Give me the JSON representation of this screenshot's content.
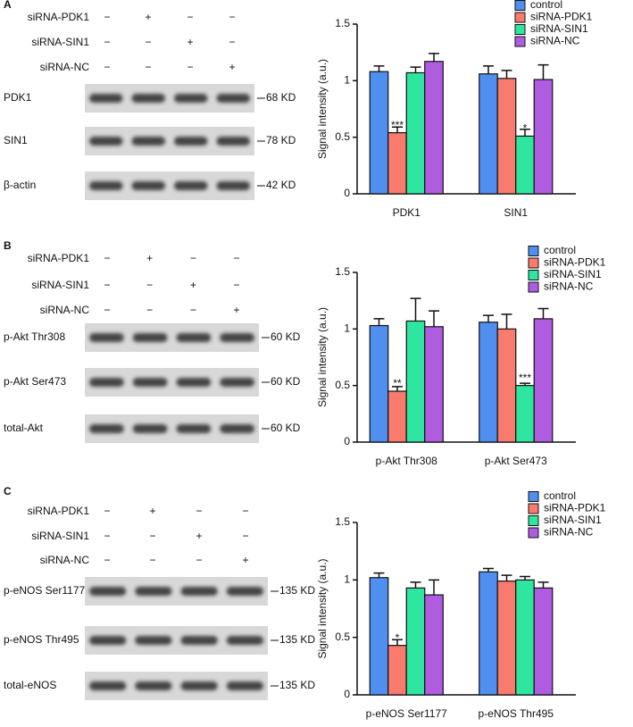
{
  "blots": [
    {
      "panel": "A",
      "treatments": [
        {
          "name": "siRNA-PDK1",
          "signs": [
            "−",
            "+",
            "−",
            "−"
          ]
        },
        {
          "name": "siRNA-SIN1",
          "signs": [
            "−",
            "−",
            "+",
            "−"
          ]
        },
        {
          "name": "siRNA-NC",
          "signs": [
            "−",
            "−",
            "−",
            "+"
          ]
        }
      ],
      "bands": [
        {
          "name": "PDK1",
          "size": "68 KD"
        },
        {
          "name": "SIN1",
          "size": "78 KD"
        },
        {
          "name": "β-actin",
          "size": "42 KD"
        }
      ]
    },
    {
      "panel": "B",
      "treatments": [
        {
          "name": "siRNA-PDK1",
          "signs": [
            "−",
            "+",
            "−",
            "−"
          ]
        },
        {
          "name": "siRNA-SIN1",
          "signs": [
            "−",
            "−",
            "+",
            "−"
          ]
        },
        {
          "name": "siRNA-NC",
          "signs": [
            "−",
            "−",
            "−",
            "+"
          ]
        }
      ],
      "bands": [
        {
          "name": "p-Akt Thr308",
          "size": "60 KD"
        },
        {
          "name": "p-Akt Ser473",
          "size": "60 KD"
        },
        {
          "name": "total-Akt",
          "size": "60 KD"
        }
      ]
    },
    {
      "panel": "C",
      "treatments": [
        {
          "name": "siRNA-PDK1",
          "signs": [
            "−",
            "+",
            "−",
            "−"
          ]
        },
        {
          "name": "siRNA-SIN1",
          "signs": [
            "−",
            "−",
            "+",
            "−"
          ]
        },
        {
          "name": "siRNA-NC",
          "signs": [
            "−",
            "−",
            "−",
            "+"
          ]
        }
      ],
      "bands": [
        {
          "name": "p-eNOS Ser1177",
          "size": "135 KD"
        },
        {
          "name": "p-eNOS Thr495",
          "size": "135 KD"
        },
        {
          "name": "total-eNOS",
          "size": "135 KD"
        }
      ]
    }
  ],
  "chart_data": [
    {
      "type": "bar",
      "y_label": "Signal intensity (a.u.)",
      "categories": [
        "PDK1",
        "SIN1"
      ],
      "ylim": [
        0,
        1.5
      ],
      "yticks": [
        0,
        0.5,
        1,
        1.5
      ],
      "legend": "upper right",
      "series": [
        {
          "name": "control",
          "color": "#4f8ff0",
          "values": [
            1.08,
            1.06
          ],
          "errors": [
            0.05,
            0.07
          ],
          "significance": [
            null,
            null
          ]
        },
        {
          "name": "siRNA-PDK1",
          "color": "#f87b6e",
          "values": [
            0.54,
            1.02
          ],
          "errors": [
            0.05,
            0.07
          ],
          "significance": [
            "***",
            null
          ]
        },
        {
          "name": "siRNA-SIN1",
          "color": "#2ee6a0",
          "values": [
            1.07,
            0.51
          ],
          "errors": [
            0.05,
            0.06
          ],
          "significance": [
            null,
            "*"
          ]
        },
        {
          "name": "siRNA-NC",
          "color": "#b05ce0",
          "values": [
            1.17,
            1.01
          ],
          "errors": [
            0.07,
            0.13
          ],
          "significance": [
            null,
            null
          ]
        }
      ]
    },
    {
      "type": "bar",
      "y_label": "Signal intensity (a.u.)",
      "categories": [
        "p-Akt Thr308",
        "p-Akt Ser473"
      ],
      "ylim": [
        0,
        1.5
      ],
      "yticks": [
        0,
        0.5,
        1,
        1.5
      ],
      "legend": "upper right",
      "series": [
        {
          "name": "control",
          "color": "#4f8ff0",
          "values": [
            1.03,
            1.06
          ],
          "errors": [
            0.06,
            0.06
          ],
          "significance": [
            null,
            null
          ]
        },
        {
          "name": "siRNA-PDK1",
          "color": "#f87b6e",
          "values": [
            0.45,
            1.0
          ],
          "errors": [
            0.04,
            0.13
          ],
          "significance": [
            "**",
            null
          ]
        },
        {
          "name": "siRNA-SIN1",
          "color": "#2ee6a0",
          "values": [
            1.07,
            0.5
          ],
          "errors": [
            0.2,
            0.02
          ],
          "significance": [
            null,
            "***"
          ]
        },
        {
          "name": "siRNA-NC",
          "color": "#b05ce0",
          "values": [
            1.02,
            1.09
          ],
          "errors": [
            0.14,
            0.09
          ],
          "significance": [
            null,
            null
          ]
        }
      ]
    },
    {
      "type": "bar",
      "y_label": "Signal intensity (a.u.)",
      "categories": [
        "p-eNOS Ser1177",
        "p-eNOS Thr495"
      ],
      "ylim": [
        0,
        1.5
      ],
      "yticks": [
        0,
        0.5,
        1,
        1.5
      ],
      "legend": "upper right",
      "series": [
        {
          "name": "control",
          "color": "#4f8ff0",
          "values": [
            1.02,
            1.07
          ],
          "errors": [
            0.04,
            0.03
          ],
          "significance": [
            null,
            null
          ]
        },
        {
          "name": "siRNA-PDK1",
          "color": "#f87b6e",
          "values": [
            0.43,
            0.99
          ],
          "errors": [
            0.05,
            0.05
          ],
          "significance": [
            "*",
            null
          ]
        },
        {
          "name": "siRNA-SIN1",
          "color": "#2ee6a0",
          "values": [
            0.93,
            1.0
          ],
          "errors": [
            0.05,
            0.03
          ],
          "significance": [
            null,
            null
          ]
        },
        {
          "name": "siRNA-NC",
          "color": "#b05ce0",
          "values": [
            0.87,
            0.93
          ],
          "errors": [
            0.13,
            0.05
          ],
          "significance": [
            null,
            null
          ]
        }
      ]
    }
  ]
}
